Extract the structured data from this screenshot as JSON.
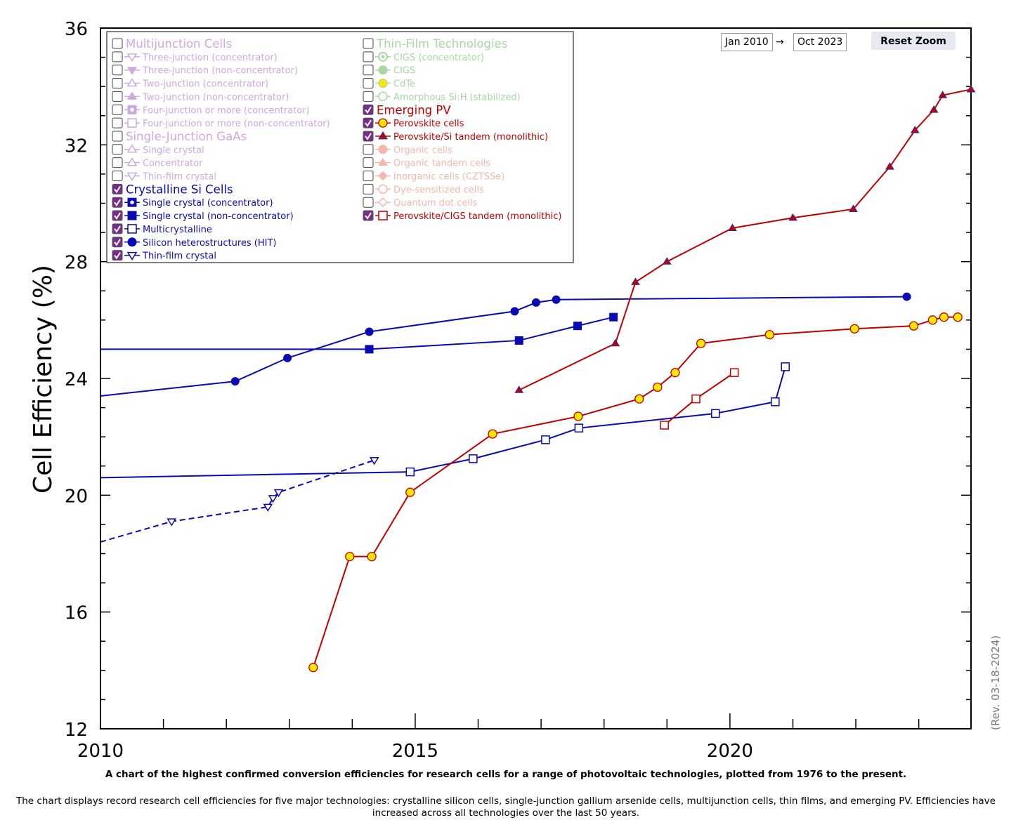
{
  "zoom": {
    "start_date": "Jan 2010",
    "arrow": "→",
    "end_date": "Oct 2023",
    "reset_label": "Reset Zoom"
  },
  "revision": "(Rev. 03-18-2024)",
  "caption": {
    "title": "A chart of the highest confirmed conversion efficiencies for research cells for a range of photovoltaic technologies, plotted from 1976 to the present.",
    "description": "The chart displays record research cell efficiencies for five major technologies: crystalline silicon cells, single-junction gallium arsenide cells, multijunction cells, thin films, and emerging PV. Efficiencies have increased across all technologies over the last 50 years."
  },
  "legend": {
    "columns": [
      [
        {
          "label": "Multijunction Cells",
          "group": true,
          "checked": false,
          "color": "#cfa8e0"
        },
        {
          "label": "Three-junction (concentrator)",
          "checked": false,
          "color": "#cfa8e0",
          "marker": "triangle-down-open"
        },
        {
          "label": "Three-junction (non-concentrator)",
          "checked": false,
          "color": "#cfa8e0",
          "marker": "triangle-down"
        },
        {
          "label": "Two-junction (concentrator)",
          "checked": false,
          "color": "#cfa8e0",
          "marker": "triangle-open"
        },
        {
          "label": "Two-junction (non-concentrator)",
          "checked": false,
          "color": "#cfa8e0",
          "marker": "triangle"
        },
        {
          "label": "Four-junction or more (concentrator)",
          "checked": false,
          "color": "#cfa8e0",
          "marker": "square-dot"
        },
        {
          "label": "Four-junction or more (non-concentrator)",
          "checked": false,
          "color": "#cfa8e0",
          "marker": "square-open"
        },
        {
          "label": "Single-Junction GaAs",
          "group": true,
          "checked": false,
          "color": "#cfa8e0"
        },
        {
          "label": "Single crystal",
          "checked": false,
          "color": "#cfa8e0",
          "marker": "triangle-open"
        },
        {
          "label": "Concentrator",
          "checked": false,
          "color": "#cfa8e0",
          "marker": "triangle-open"
        },
        {
          "label": "Thin-film crystal",
          "checked": false,
          "color": "#cfa8e0",
          "marker": "triangle-down-open"
        },
        {
          "label": "Crystalline Si Cells",
          "group": true,
          "checked": true,
          "color": "#0a0ab4"
        },
        {
          "label": "Single crystal (concentrator)",
          "checked": true,
          "color": "#0a0ab4",
          "marker": "square-dot"
        },
        {
          "label": "Single crystal (non-concentrator)",
          "checked": true,
          "color": "#0a0ab4",
          "marker": "square"
        },
        {
          "label": "Multicrystalline",
          "checked": true,
          "color": "#0a0ab4",
          "marker": "square-open"
        },
        {
          "label": "Silicon heterostructures (HIT)",
          "checked": true,
          "color": "#0a0ab4",
          "marker": "circle"
        },
        {
          "label": "Thin-film crystal",
          "checked": true,
          "color": "#0a0ab4",
          "marker": "triangle-down-open"
        }
      ],
      [
        {
          "label": "Thin-Film Technologies",
          "group": true,
          "checked": false,
          "color": "#a7d8a0"
        },
        {
          "label": "CIGS (concentrator)",
          "checked": false,
          "color": "#a7d8a0",
          "marker": "circle-dot"
        },
        {
          "label": "CIGS",
          "checked": false,
          "color": "#a7d8a0",
          "marker": "circle"
        },
        {
          "label": "CdTe",
          "checked": false,
          "color": "#a7d8a0",
          "marker": "circle-yellow"
        },
        {
          "label": "Amorphous Si:H (stabilized)",
          "checked": false,
          "color": "#a7d8a0",
          "marker": "circle-open"
        },
        {
          "label": "Emerging PV",
          "group": true,
          "checked": true,
          "color": "#c00000"
        },
        {
          "label": "Perovskite cells",
          "checked": true,
          "color": "#c00000",
          "marker": "circle-yellow"
        },
        {
          "label": "Perovskite/Si tandem (monolithic)",
          "checked": true,
          "color": "#c00000",
          "marker": "triangle-red"
        },
        {
          "label": "Organic cells",
          "checked": false,
          "color": "#f2b8ae",
          "marker": "circle"
        },
        {
          "label": "Organic tandem cells",
          "checked": false,
          "color": "#f2b8ae",
          "marker": "triangle"
        },
        {
          "label": "Inorganic cells (CZTSSe)",
          "checked": false,
          "color": "#f2b8ae",
          "marker": "diamond"
        },
        {
          "label": "Dye-sensitized cells",
          "checked": false,
          "color": "#f2b8ae",
          "marker": "circle-open"
        },
        {
          "label": "Quantum dot cells",
          "checked": false,
          "color": "#f2b8ae",
          "marker": "diamond-open"
        },
        {
          "label": "Perovskite/CIGS tandem (monolithic)",
          "checked": true,
          "color": "#c00000",
          "marker": "square-open"
        }
      ]
    ]
  },
  "chart_data": {
    "type": "line",
    "ylabel": "Cell Efficiency (%)",
    "xlabel": "",
    "xlim": [
      2010,
      2023.83
    ],
    "ylim": [
      12,
      36
    ],
    "x_ticks": [
      2010,
      2015,
      2020
    ],
    "y_ticks": [
      12,
      16,
      20,
      24,
      28,
      32,
      36
    ],
    "grid": false,
    "legend_placement": "top-left",
    "series": [
      {
        "name": "Single crystal (non-concentrator)",
        "color": "#0a0ab4",
        "marker": "square",
        "dashed": false,
        "points": [
          [
            2010.0,
            25.0
          ],
          [
            2014.27,
            25.0
          ],
          [
            2016.65,
            25.3
          ],
          [
            2017.58,
            25.8
          ],
          [
            2018.15,
            26.1
          ]
        ]
      },
      {
        "name": "Multicrystalline",
        "color": "#0a0ab4",
        "marker": "square-open",
        "dashed": false,
        "points": [
          [
            2010.0,
            20.6
          ],
          [
            2014.92,
            20.8
          ],
          [
            2015.92,
            21.25
          ],
          [
            2017.07,
            21.9
          ],
          [
            2017.6,
            22.3
          ],
          [
            2019.77,
            22.8
          ],
          [
            2020.72,
            23.2
          ],
          [
            2020.88,
            24.4
          ]
        ]
      },
      {
        "name": "Silicon heterostructures (HIT)",
        "color": "#0a0ab4",
        "marker": "circle",
        "dashed": false,
        "points": [
          [
            2010.0,
            23.4
          ],
          [
            2012.14,
            23.9
          ],
          [
            2012.97,
            24.7
          ],
          [
            2014.27,
            25.6
          ],
          [
            2016.58,
            26.3
          ],
          [
            2016.92,
            26.6
          ],
          [
            2017.24,
            26.7
          ],
          [
            2022.81,
            26.8
          ]
        ]
      },
      {
        "name": "Thin-film crystal",
        "color": "#0a0ab4",
        "marker": "triangle-down-open",
        "dashed": true,
        "points": [
          [
            2010.0,
            18.4
          ],
          [
            2011.13,
            19.1
          ],
          [
            2012.66,
            19.6
          ],
          [
            2012.74,
            19.9
          ],
          [
            2012.83,
            20.1
          ],
          [
            2014.35,
            21.2
          ]
        ]
      },
      {
        "name": "Perovskite cells",
        "color": "#c00000",
        "marker": "circle-yellow",
        "dashed": false,
        "points": [
          [
            2013.38,
            14.1
          ],
          [
            2013.96,
            17.9
          ],
          [
            2014.31,
            17.9
          ],
          [
            2014.92,
            20.1
          ],
          [
            2016.23,
            22.1
          ],
          [
            2017.59,
            22.7
          ],
          [
            2018.56,
            23.3
          ],
          [
            2018.85,
            23.7
          ],
          [
            2019.13,
            24.2
          ],
          [
            2019.54,
            25.2
          ],
          [
            2020.63,
            25.5
          ],
          [
            2021.98,
            25.7
          ],
          [
            2022.92,
            25.8
          ],
          [
            2023.22,
            26.0
          ],
          [
            2023.4,
            26.1
          ],
          [
            2023.62,
            26.1
          ]
        ]
      },
      {
        "name": "Perovskite/Si tandem (monolithic)",
        "color": "#c00000",
        "marker": "triangle-red",
        "dashed": false,
        "points": [
          [
            2016.65,
            23.6
          ],
          [
            2018.18,
            25.2
          ],
          [
            2018.5,
            27.3
          ],
          [
            2019.0,
            28.0
          ],
          [
            2020.04,
            29.15
          ],
          [
            2021.0,
            29.5
          ],
          [
            2021.96,
            29.8
          ],
          [
            2022.54,
            31.25
          ],
          [
            2022.94,
            32.5
          ],
          [
            2023.24,
            33.2
          ],
          [
            2023.38,
            33.7
          ],
          [
            2023.83,
            33.9
          ]
        ]
      },
      {
        "name": "Perovskite/CIGS tandem (monolithic)",
        "color": "#c00000",
        "marker": "square-open",
        "dashed": false,
        "points": [
          [
            2018.96,
            22.4
          ],
          [
            2019.46,
            23.3
          ],
          [
            2020.07,
            24.2
          ]
        ]
      }
    ]
  }
}
